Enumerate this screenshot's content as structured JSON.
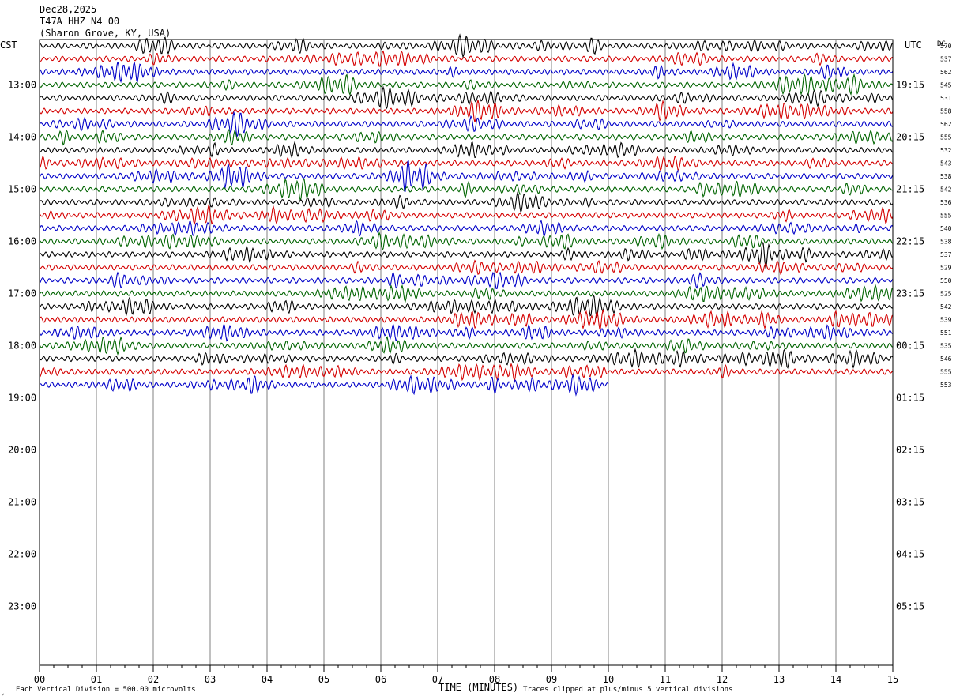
{
  "header": {
    "date": "Dec28,2025",
    "station": "T47A HHZ N4 00",
    "location": "(Sharon Grove, KY, USA)"
  },
  "left_axis_title": "CST",
  "right_axis_title": "UTC",
  "dc_label": "DC",
  "footer": {
    "scale_note": "Each Vertical Division =  500.00 microvolts",
    "xlabel": "TIME (MINUTES)",
    "clip_note": "Traces clipped at plus/minus 5 vertical divisions",
    "corner_mark": "◞"
  },
  "colors": {
    "trace_cycle": [
      "#000000",
      "#d40000",
      "#0000c8",
      "#006400"
    ],
    "grid": "#808080",
    "frame": "#000000"
  },
  "chart_data": {
    "type": "line",
    "chart_kind": "helicorder",
    "rows_per_hour": 4,
    "row_minutes": 15,
    "first_row_cst": "12:15",
    "first_row_utc": "18:15",
    "xlim": [
      0,
      15
    ],
    "x_ticks": [
      "00",
      "01",
      "02",
      "03",
      "04",
      "05",
      "06",
      "07",
      "08",
      "09",
      "10",
      "11",
      "12",
      "13",
      "14",
      "15"
    ],
    "left_hour_labels": [
      "13:00",
      "14:00",
      "15:00",
      "16:00",
      "17:00",
      "18:00",
      "19:00",
      "20:00",
      "21:00",
      "22:00",
      "23:00"
    ],
    "right_hour_labels": [
      "19:15",
      "20:15",
      "21:15",
      "22:15",
      "23:15",
      "00:15",
      "01:15",
      "02:15",
      "03:15",
      "04:15",
      "05:15"
    ],
    "dc_offsets": [
      "570",
      "537",
      "562",
      "545",
      "531",
      "558",
      "562",
      "555",
      "532",
      "543",
      "538",
      "542",
      "536",
      "555",
      "540",
      "538",
      "537",
      "529",
      "550",
      "525",
      "542",
      "539",
      "551",
      "535",
      "546",
      "555",
      "553"
    ],
    "trace_rows": 27,
    "last_row_end_minute": 10,
    "total_rows": 48
  }
}
